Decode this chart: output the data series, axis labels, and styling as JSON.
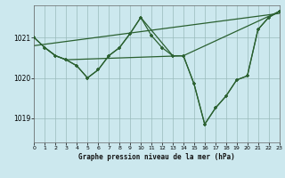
{
  "title": "Graphe pression niveau de la mer (hPa)",
  "bg_color": "#cce8ee",
  "plot_bg_color": "#cce8ee",
  "grid_color": "#99bbbb",
  "line_color": "#2a6030",
  "xlim": [
    0,
    23
  ],
  "ylim": [
    1018.4,
    1021.8
  ],
  "yticks": [
    1019,
    1020,
    1021
  ],
  "xtick_labels": [
    "0",
    "1",
    "2",
    "3",
    "4",
    "5",
    "6",
    "7",
    "8",
    "9",
    "10",
    "11",
    "12",
    "13",
    "14",
    "15",
    "16",
    "17",
    "18",
    "19",
    "20",
    "21",
    "22",
    "23"
  ],
  "main_x": [
    0,
    1,
    2,
    3,
    4,
    5,
    6,
    7,
    8,
    9,
    10,
    11,
    12,
    13,
    14,
    15,
    16,
    17,
    18,
    19,
    20,
    21,
    22,
    23
  ],
  "main_y": [
    1021.0,
    1020.75,
    1020.55,
    1020.45,
    1020.3,
    1020.0,
    1020.2,
    1020.55,
    1020.75,
    1021.1,
    1021.5,
    1021.05,
    1020.75,
    1020.55,
    1020.55,
    1019.85,
    1018.85,
    1019.25,
    1019.55,
    1019.95,
    1020.05,
    1021.2,
    1021.5,
    1021.65
  ],
  "line2_x": [
    0,
    23
  ],
  "line2_y": [
    1020.8,
    1021.6
  ],
  "line3_x": [
    0,
    1,
    2,
    3,
    4,
    5,
    6,
    7,
    8,
    9,
    10,
    13,
    14,
    23
  ],
  "line3_y": [
    1021.0,
    1020.75,
    1020.55,
    1020.45,
    1020.3,
    1020.0,
    1020.2,
    1020.55,
    1020.75,
    1021.1,
    1021.5,
    1020.55,
    1020.55,
    1021.65
  ],
  "line4_x": [
    1,
    2,
    3,
    14,
    15,
    16,
    17,
    18,
    19,
    20,
    21,
    22,
    23
  ],
  "line4_y": [
    1020.75,
    1020.55,
    1020.45,
    1020.55,
    1019.85,
    1018.85,
    1019.25,
    1019.55,
    1019.95,
    1020.05,
    1021.2,
    1021.5,
    1021.65
  ]
}
